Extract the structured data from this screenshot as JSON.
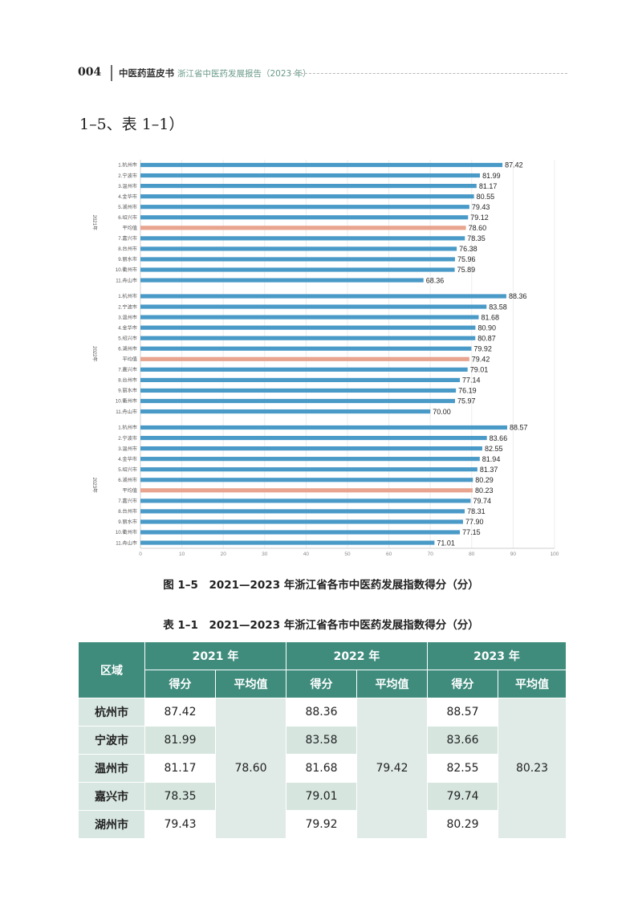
{
  "header": {
    "page_number": "004",
    "series": "中医药蓝皮书",
    "report_title": "浙江省中医药发展报告（2023 年）"
  },
  "intro_text": "1–5、表 1–1）",
  "figure_caption": "图 1–5　2021—2023 年浙江省各市中医药发展指数得分（分）",
  "table_caption": "表 1–1　2021—2023 年浙江省各市中医药发展指数得分（分）",
  "colors": {
    "bar": "#4a9ac8",
    "average_bar": "#e8a48e",
    "table_header": "#3f8c7d",
    "table_shade": "#d6e6df"
  },
  "chart_data": {
    "type": "bar",
    "orientation": "horizontal",
    "xlim": [
      0,
      100
    ],
    "xticks": [
      "0",
      "10",
      "20",
      "30",
      "40",
      "50",
      "60",
      "70",
      "80",
      "90",
      "100"
    ],
    "grid": true,
    "groups": [
      {
        "year": "2021年",
        "categories": [
          "1.杭州市",
          "2.宁波市",
          "3.温州市",
          "4.金华市",
          "5.湖州市",
          "6.绍兴市",
          "平均值",
          "7.嘉兴市",
          "8.台州市",
          "9.丽水市",
          "10.衢州市",
          "11.舟山市"
        ],
        "values": [
          87.42,
          81.99,
          81.17,
          80.55,
          79.43,
          79.12,
          78.6,
          78.35,
          76.38,
          75.96,
          75.89,
          68.36
        ],
        "labels": [
          "87.42",
          "81.99",
          "81.17",
          "80.55",
          "79.43",
          "79.12",
          "78.60",
          "78.35",
          "76.38",
          "75.96",
          "75.89",
          "68.36"
        ]
      },
      {
        "year": "2022年",
        "categories": [
          "1.杭州市",
          "2.宁波市",
          "3.温州市",
          "4.金华市",
          "5.绍兴市",
          "6.湖州市",
          "平均值",
          "7.嘉兴市",
          "8.台州市",
          "9.丽水市",
          "10.衢州市",
          "11.舟山市"
        ],
        "values": [
          88.36,
          83.58,
          81.68,
          80.9,
          80.87,
          79.92,
          79.42,
          79.01,
          77.14,
          76.19,
          75.97,
          70.0
        ],
        "labels": [
          "88.36",
          "83.58",
          "81.68",
          "80.90",
          "80.87",
          "79.92",
          "79.42",
          "79.01",
          "77.14",
          "76.19",
          "75.97",
          "70.00"
        ]
      },
      {
        "year": "2023年",
        "categories": [
          "1.杭州市",
          "2.宁波市",
          "3.温州市",
          "4.金华市",
          "5.绍兴市",
          "6.湖州市",
          "平均值",
          "7.嘉兴市",
          "8.台州市",
          "9.丽水市",
          "10.衢州市",
          "11.舟山市"
        ],
        "values": [
          88.57,
          83.66,
          82.55,
          81.94,
          81.37,
          80.29,
          80.23,
          79.74,
          78.31,
          77.9,
          77.15,
          71.01
        ],
        "labels": [
          "88.57",
          "83.66",
          "82.55",
          "81.94",
          "81.37",
          "80.29",
          "80.23",
          "79.74",
          "78.31",
          "77.90",
          "77.15",
          "71.01"
        ]
      }
    ]
  },
  "table": {
    "region_header": "区域",
    "year_headers": [
      "2021 年",
      "2022 年",
      "2023 年"
    ],
    "sub_headers": [
      "得分",
      "平均值",
      "得分",
      "平均值",
      "得分",
      "平均值"
    ],
    "averages": [
      "78.60",
      "79.42",
      "80.23"
    ],
    "rows": [
      {
        "region": "杭州市",
        "scores": [
          "87.42",
          "88.36",
          "88.57"
        ]
      },
      {
        "region": "宁波市",
        "scores": [
          "81.99",
          "83.58",
          "83.66"
        ]
      },
      {
        "region": "温州市",
        "scores": [
          "81.17",
          "81.68",
          "82.55"
        ]
      },
      {
        "region": "嘉兴市",
        "scores": [
          "78.35",
          "79.01",
          "79.74"
        ]
      },
      {
        "region": "湖州市",
        "scores": [
          "79.43",
          "79.92",
          "80.29"
        ]
      }
    ]
  }
}
